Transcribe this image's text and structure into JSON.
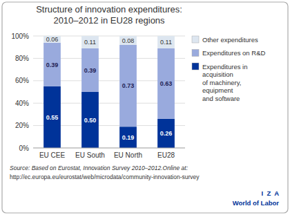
{
  "chart_data": {
    "type": "bar",
    "stacked": true,
    "title": "Structure of innovation expenditures:\n2010–2012 in EU28 regions",
    "categories": [
      "EU CEE",
      "EU South",
      "EU North",
      "EU28"
    ],
    "series": [
      {
        "name": "Expenditures in\nacquisition\nof machinery,\nequipment\nand software",
        "color": "#003399",
        "values": [
          0.55,
          0.5,
          0.19,
          0.26
        ],
        "value_labels": [
          "0.55",
          "0.50",
          "0.19",
          "0.26"
        ]
      },
      {
        "name": "Expenditures on R&D",
        "color": "#99aadd",
        "values": [
          0.39,
          0.39,
          0.73,
          0.63
        ],
        "value_labels": [
          "0.39",
          "0.39",
          "0.73",
          "0.63"
        ]
      },
      {
        "name": "Other expenditures",
        "color": "#dde6f0",
        "values": [
          0.06,
          0.11,
          0.08,
          0.11
        ],
        "value_labels": [
          "0.06",
          "0.11",
          "0.08",
          "0.11"
        ]
      }
    ],
    "ylim": [
      0,
      1.0
    ],
    "yticks": [
      {
        "value": 0,
        "label": "0%"
      },
      {
        "value": 0.2,
        "label": "20%"
      },
      {
        "value": 0.4,
        "label": "40%"
      },
      {
        "value": 0.6,
        "label": "60%"
      },
      {
        "value": 0.8,
        "label": "80%"
      },
      {
        "value": 1.0,
        "label": "100%"
      }
    ],
    "grid": true,
    "legend": "right",
    "data_labels": true,
    "annotations": [
      "Source: Based on Eurostat, Innovation Survey 2010–2012.Online at:",
      "http://ec.europa.eu/eurostat/web/microdata/community-innovation-survey",
      "I  Z  A",
      "World of Labor"
    ]
  }
}
